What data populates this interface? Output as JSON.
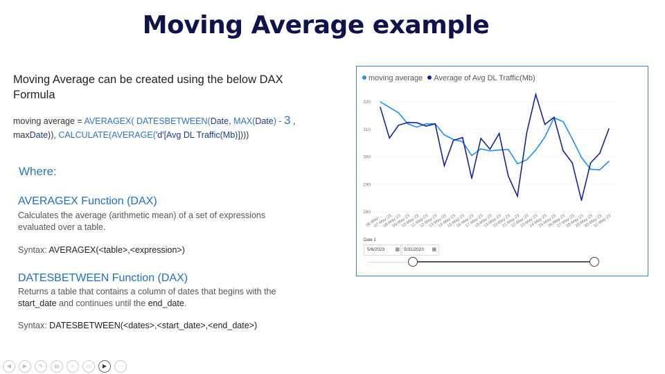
{
  "title": "Moving Average example",
  "intro": "Moving Average can be created using the below DAX Formula",
  "formula": {
    "p1": "moving average = ",
    "f1": "AVERAGEX( DATESBETWEEN(",
    "a1": "Date, ",
    "f2": "MAX(",
    "a2": "Date",
    "f3": ") - ",
    "n": "3",
    ",": " ,",
    "p2": "max",
    "a3": "Date",
    "p3": ")), ",
    "f4": "CALCULATE(AVERAGE(",
    "a4": "'d'[Avg DL Traffic(Mb)]",
    "p4": ")))"
  },
  "where": "Where:",
  "averagex": {
    "heading": "AVERAGEX Function (DAX)",
    "desc": "Calculates the average (arithmetic mean) of a set of expressions evaluated over a table.",
    "syntax_label": "Syntax: ",
    "syntax": "AVERAGEX(<table>,<expression>)"
  },
  "datesbetween": {
    "heading": "DATESBETWEEN Function (DAX)",
    "desc1": "Returns a table that contains a column of dates that begins with the ",
    "start": "start_date",
    "desc2": " and continues until the ",
    "end": "end_date",
    "desc3": ".",
    "syntax_label": "Syntax: ",
    "syntax": "DATESBETWEEN(<dates>,<start_date>,<end_date>)"
  },
  "slicer": {
    "label": "Date 1",
    "start": "5/6/2023",
    "end": "5/31/2023",
    "range_fraction": [
      0.2,
      1.0
    ]
  },
  "chart_data": {
    "type": "line",
    "categories": [
      "06-May-...",
      "07-May-23",
      "08-May-23",
      "09-May-23",
      "10-May-23",
      "11-May-23",
      "12-May-23",
      "13-May-23",
      "14-May-23",
      "15-May-23",
      "16-May-23",
      "17-May-23",
      "18-May-23",
      "19-May-23",
      "20-May-23",
      "21-May-23",
      "22-May-23",
      "23-May-23",
      "24-May-23",
      "25-May-23",
      "26-May-23",
      "27-May-23",
      "28-May-23",
      "29-May-23",
      "30-May-23",
      "31-May-23"
    ],
    "series": [
      {
        "name": "moving average",
        "color": "#1e90f0",
        "values": [
          320,
          318,
          316,
          312,
          310.8,
          312,
          312,
          308,
          306.3,
          305.5,
          300.5,
          302.9,
          302.2,
          302.5,
          302.7,
          297.5,
          298.9,
          302.5,
          307.2,
          314.2,
          312.8,
          306.5,
          299.8,
          295.5,
          295.3,
          298.4
        ]
      },
      {
        "name": "Average of Avg DL Traffic(Mb)",
        "color": "#12239e",
        "values": [
          318,
          306.8,
          311.5,
          312.5,
          312.4,
          311.2,
          312,
          296.8,
          306,
          307,
          292.2,
          306.7,
          302.8,
          308.5,
          293,
          285.7,
          308.5,
          322.7,
          311.8,
          314.4,
          302.2,
          297.8,
          284.2,
          297.8,
          301.3,
          310.2
        ]
      }
    ],
    "yticks": [
      280,
      290,
      300,
      310,
      320
    ],
    "ylim": [
      280,
      324
    ],
    "grid": true,
    "legend": "top-left"
  },
  "toolbar": [
    "prev",
    "next",
    "pen",
    "slides",
    "zoom",
    "subtitles",
    "camera",
    "more"
  ]
}
